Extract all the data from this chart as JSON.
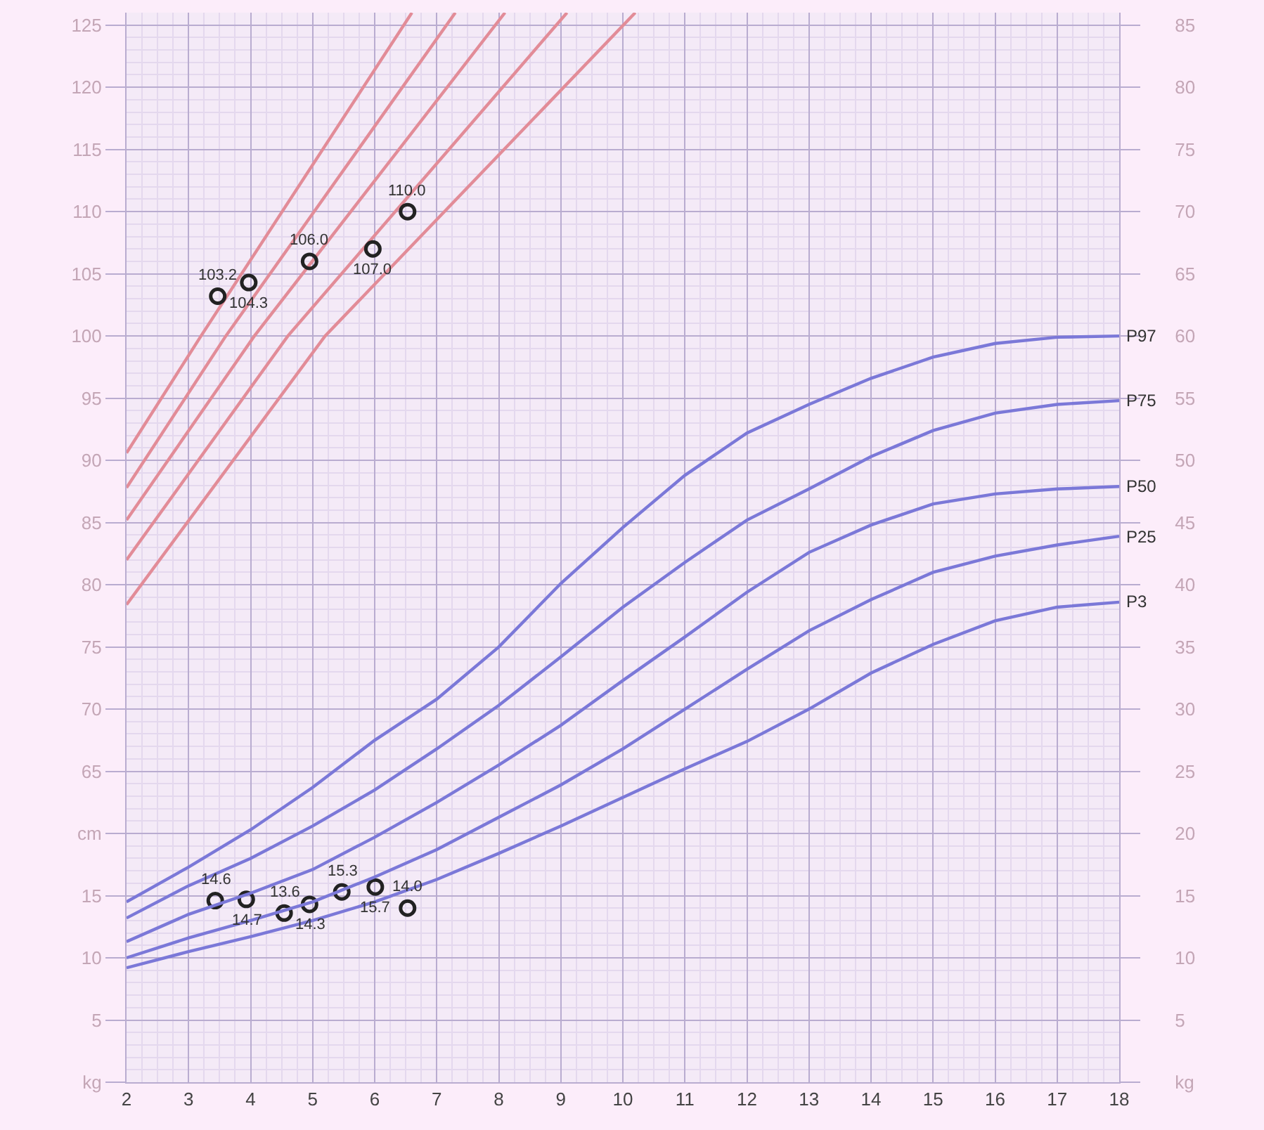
{
  "chart_data": {
    "type": "line",
    "xlim": [
      2,
      18
    ],
    "xticks": [
      2,
      3,
      4,
      5,
      6,
      7,
      8,
      9,
      10,
      11,
      12,
      13,
      14,
      15,
      16,
      17,
      18
    ],
    "ylim": [
      0,
      86
    ],
    "yticks": [
      {
        "value": 0,
        "label": "kg"
      },
      5,
      10,
      15,
      {
        "value": 20,
        "label": "cm"
      }
    ],
    "y2lim": [
      0,
      86
    ],
    "y2ticks": [
      {
        "value": 0,
        "label": "kg"
      },
      5,
      10,
      15,
      20,
      25,
      30,
      35,
      40,
      45,
      50,
      55,
      60,
      65,
      70,
      75,
      80,
      85
    ],
    "y3lim": [
      40,
      126
    ],
    "y3ticks": [
      65,
      70,
      75,
      80,
      85,
      90,
      95,
      100,
      105,
      110,
      115,
      120,
      125
    ],
    "grid": true,
    "legend": false,
    "marker": "none",
    "line_style": "solid",
    "series": [
      {
        "name": "P97",
        "color": "#7b78d8",
        "axis": "y2",
        "x": [
          2,
          3,
          4,
          5,
          6,
          7,
          8,
          9,
          10,
          11,
          12,
          13,
          14,
          15,
          16,
          17,
          18
        ],
        "values": [
          14.5,
          17.3,
          20.3,
          23.7,
          27.5,
          30.8,
          35,
          40.1,
          44.6,
          48.8,
          52.2,
          54.5,
          56.6,
          58.3,
          59.4,
          59.9,
          60
        ]
      },
      {
        "name": "P75",
        "color": "#7b78d8",
        "axis": "y2",
        "x": [
          2,
          3,
          4,
          5,
          6,
          7,
          8,
          9,
          10,
          11,
          12,
          13,
          14,
          15,
          16,
          17,
          18
        ],
        "values": [
          13.2,
          15.8,
          18,
          20.6,
          23.5,
          26.8,
          30.3,
          34.2,
          38.2,
          41.8,
          45.2,
          47.7,
          50.3,
          52.4,
          53.8,
          54.5,
          54.8
        ]
      },
      {
        "name": "P50",
        "color": "#7b78d8",
        "axis": "y2",
        "x": [
          2,
          3,
          4,
          5,
          6,
          7,
          8,
          9,
          10,
          11,
          12,
          13,
          14,
          15,
          16,
          17,
          18
        ],
        "values": [
          11.3,
          13.5,
          15.2,
          17.1,
          19.7,
          22.5,
          25.5,
          28.7,
          32.3,
          35.8,
          39.4,
          42.6,
          44.8,
          46.5,
          47.3,
          47.7,
          47.9
        ]
      },
      {
        "name": "P25",
        "color": "#7b78d8",
        "axis": "y2",
        "x": [
          2,
          3,
          4,
          5,
          6,
          7,
          8,
          9,
          10,
          11,
          12,
          13,
          14,
          15,
          16,
          17,
          18
        ],
        "values": [
          10,
          11.6,
          13,
          14.5,
          16.5,
          18.7,
          21.3,
          23.9,
          26.8,
          30,
          33.2,
          36.3,
          38.8,
          41,
          42.3,
          43.2,
          43.9
        ]
      },
      {
        "name": "P3",
        "color": "#7b78d8",
        "axis": "y2",
        "x": [
          2,
          3,
          4,
          5,
          6,
          7,
          8,
          9,
          10,
          11,
          12,
          13,
          14,
          15,
          16,
          17,
          18
        ],
        "values": [
          9.2,
          10.5,
          11.7,
          13,
          14.5,
          16.3,
          18.4,
          20.6,
          22.9,
          25.2,
          27.4,
          30,
          32.9,
          35.2,
          37.1,
          38.2,
          38.6
        ]
      },
      {
        "color": "#e28c98",
        "axis": "y3",
        "x": [
          2,
          3.2,
          6.6
        ],
        "values": [
          90.6,
          100,
          126
        ]
      },
      {
        "color": "#e28c98",
        "axis": "y3",
        "x": [
          2,
          3.6,
          7.3
        ],
        "values": [
          87.8,
          100,
          126
        ]
      },
      {
        "color": "#e28c98",
        "axis": "y3",
        "x": [
          2,
          4.06,
          8.1
        ],
        "values": [
          85.2,
          100,
          126
        ]
      },
      {
        "color": "#e28c98",
        "axis": "y3",
        "x": [
          2,
          4.6,
          9.1
        ],
        "values": [
          82,
          100,
          126
        ]
      },
      {
        "color": "#e28c98",
        "axis": "y3",
        "x": [
          2,
          5.2,
          10.2
        ],
        "values": [
          78.4,
          100,
          126
        ]
      },
      {
        "type": "scatter",
        "marker": "circle",
        "color": "#222222",
        "axis": "y3",
        "x": [
          3.47,
          3.97,
          4.95,
          5.97,
          6.53
        ],
        "values": [
          103.2,
          104.3,
          106.0,
          107.0,
          110.0
        ],
        "value_labels": [
          "103.2",
          "104.3",
          "106.0",
          "107.0",
          "110.0"
        ]
      },
      {
        "type": "scatter",
        "marker": "circle",
        "color": "#222222",
        "axis": "y",
        "x": [
          3.43,
          3.93,
          4.54,
          4.95,
          5.47,
          6.01,
          6.53
        ],
        "values": [
          14.6,
          14.7,
          13.6,
          14.3,
          15.3,
          15.7,
          14.0
        ],
        "value_labels": [
          "14.6",
          "14.7",
          "13.6",
          "14.3",
          "15.3",
          "15.7",
          "14.0"
        ]
      }
    ]
  }
}
